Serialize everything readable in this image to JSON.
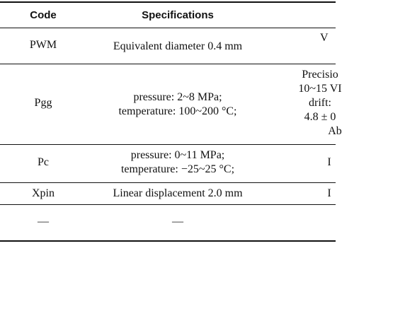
{
  "header": {
    "code": "Code",
    "specifications": "Specifications"
  },
  "rows": [
    {
      "code": "PWM",
      "spec": [
        "Equivalent diameter 0.4 mm"
      ],
      "third": [
        "V"
      ]
    },
    {
      "code": "Pgg",
      "spec": [
        "pressure: 2~8 MPa;",
        "temperature: 100~200 °C;"
      ],
      "third": [
        "Precisio",
        "10~15 VI",
        "drift:",
        "4.8 ± 0",
        "Ab"
      ]
    },
    {
      "code": "Pc",
      "spec": [
        "pressure: 0~11 MPa;",
        "temperature: −25~25 °C;"
      ],
      "third": [
        "I"
      ]
    },
    {
      "code": "Xpin",
      "spec": [
        "Linear displacement 2.0 mm"
      ],
      "third": [
        "I"
      ]
    },
    {
      "code": "—",
      "spec": [
        "—"
      ],
      "third": []
    }
  ]
}
